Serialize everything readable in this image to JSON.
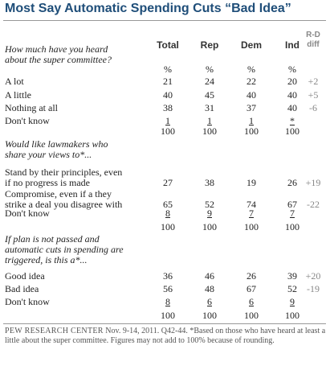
{
  "chart_data": {
    "type": "table",
    "title": "Most Say Automatic Spending Cuts “Bad Idea”",
    "columns": [
      "Total",
      "Rep",
      "Dem",
      "Ind"
    ],
    "rd_header": [
      "R-D",
      "diff"
    ],
    "sections": [
      {
        "question": [
          "How much have you heard",
          "about the super committee?"
        ],
        "units": [
          "%",
          "%",
          "%",
          "%"
        ],
        "rows": [
          {
            "label": [
              "A lot"
            ],
            "values": [
              "21",
              "24",
              "22",
              "20"
            ],
            "diff": "+2"
          },
          {
            "label": [
              "A little"
            ],
            "values": [
              "40",
              "45",
              "40",
              "40"
            ],
            "diff": "+5"
          },
          {
            "label": [
              "Nothing at all"
            ],
            "values": [
              "38",
              "31",
              "37",
              "40"
            ],
            "diff": "-6"
          },
          {
            "label": [
              "Don't know"
            ],
            "values": [
              "1",
              "1",
              "1",
              "*"
            ],
            "diff": ""
          }
        ],
        "totals": [
          "100",
          "100",
          "100",
          "100"
        ]
      },
      {
        "question": [
          "Would like lawmakers who",
          "share your views to*..."
        ],
        "units": [],
        "rows": [
          {
            "label": [
              "Stand by their principles, even",
              "if no progress is made"
            ],
            "values": [
              "27",
              "38",
              "19",
              "26"
            ],
            "diff": "+19"
          },
          {
            "label": [
              "Compromise, even if a they",
              "strike a deal you disagree with"
            ],
            "values": [
              "65",
              "52",
              "74",
              "67"
            ],
            "diff": "-22"
          },
          {
            "label": [
              "Don't know"
            ],
            "values": [
              "8",
              "9",
              "7",
              "7"
            ],
            "diff": ""
          }
        ],
        "totals": [
          "100",
          "100",
          "100",
          "100"
        ]
      },
      {
        "question": [
          "If plan is not passed and",
          "automatic cuts in spending are",
          "triggered, is this a*..."
        ],
        "units": [],
        "rows": [
          {
            "label": [
              "Good idea"
            ],
            "values": [
              "36",
              "46",
              "26",
              "39"
            ],
            "diff": "+20"
          },
          {
            "label": [
              "Bad idea"
            ],
            "values": [
              "56",
              "48",
              "67",
              "52"
            ],
            "diff": "-19"
          },
          {
            "label": [
              "Don't know"
            ],
            "values": [
              "8",
              "6",
              "6",
              "9"
            ],
            "diff": ""
          }
        ],
        "totals": [
          "100",
          "100",
          "100",
          "100"
        ]
      }
    ],
    "footer": {
      "source": "PEW RESEARCH CENTER",
      "text": " Nov. 9-14, 2011. Q42-44. *Based on those who have heard at least a little about the super committee. Figures may not add to 100% because of rounding."
    }
  }
}
